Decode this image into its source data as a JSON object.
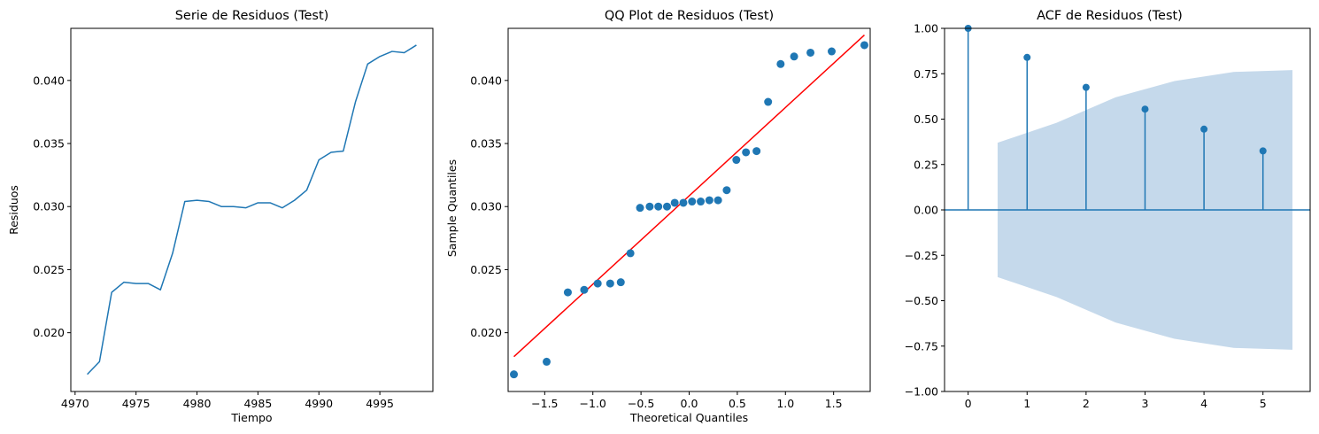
{
  "chart_data": [
    {
      "type": "line",
      "title": "Serie de Residuos (Test)",
      "xlabel": "Tiempo",
      "ylabel": "Residuos",
      "xlim": [
        4969.65,
        4999.35
      ],
      "ylim": [
        0.01534,
        0.04413
      ],
      "xticks": [
        4970,
        4975,
        4980,
        4985,
        4990,
        4995
      ],
      "xtick_labels": [
        "4970",
        "4975",
        "4980",
        "4985",
        "4990",
        "4995"
      ],
      "yticks": [
        0.02,
        0.025,
        0.03,
        0.035,
        0.04
      ],
      "ytick_labels": [
        "0.020",
        "0.025",
        "0.030",
        "0.035",
        "0.040"
      ],
      "color": "#1f77b4",
      "series": [
        {
          "x": [
            4971,
            4972,
            4973,
            4974,
            4975,
            4976,
            4977,
            4978,
            4979,
            4980,
            4981,
            4982,
            4983,
            4984,
            4985,
            4986,
            4987,
            4988,
            4989,
            4990,
            4991,
            4992,
            4993,
            4994,
            4995,
            4996,
            4997,
            4998
          ],
          "values": [
            0.0167,
            0.0177,
            0.0232,
            0.024,
            0.0239,
            0.0239,
            0.0234,
            0.0263,
            0.0304,
            0.0305,
            0.0304,
            0.03,
            0.03,
            0.0299,
            0.0303,
            0.0303,
            0.0299,
            0.0305,
            0.0313,
            0.0337,
            0.0343,
            0.0344,
            0.0383,
            0.0413,
            0.0419,
            0.0423,
            0.0422,
            0.0428
          ]
        }
      ],
      "grid": false
    },
    {
      "type": "scatter",
      "title": "QQ Plot de Residuos (Test)",
      "xlabel": "Theoretical Quantiles",
      "ylabel": "Sample Quantiles",
      "xlim": [
        -1.88,
        1.88
      ],
      "ylim": [
        0.01534,
        0.04413
      ],
      "xticks": [
        -1.5,
        -1.0,
        -0.5,
        0.0,
        0.5,
        1.0,
        1.5
      ],
      "xtick_labels": [
        "−1.5",
        "−1.0",
        "−0.5",
        "0.0",
        "0.5",
        "1.0",
        "1.5"
      ],
      "yticks": [
        0.02,
        0.025,
        0.03,
        0.035,
        0.04
      ],
      "ytick_labels": [
        "0.020",
        "0.025",
        "0.030",
        "0.035",
        "0.040"
      ],
      "point_color": "#1f77b4",
      "line_color": "#ff0000",
      "points": {
        "x": [
          -1.82,
          -1.48,
          -1.26,
          -1.09,
          -0.95,
          -0.82,
          -0.71,
          -0.61,
          -0.51,
          -0.41,
          -0.32,
          -0.23,
          -0.15,
          -0.06,
          0.03,
          0.12,
          0.21,
          0.3,
          0.39,
          0.49,
          0.59,
          0.7,
          0.82,
          0.95,
          1.09,
          1.26,
          1.48,
          1.82
        ],
        "y": [
          0.0167,
          0.0177,
          0.0232,
          0.0234,
          0.0239,
          0.0239,
          0.024,
          0.0263,
          0.0299,
          0.03,
          0.03,
          0.03,
          0.0303,
          0.0303,
          0.0304,
          0.0304,
          0.0305,
          0.0305,
          0.0313,
          0.0337,
          0.0343,
          0.0344,
          0.0383,
          0.0413,
          0.0419,
          0.0422,
          0.0423,
          0.0428
        ]
      },
      "fit_line": {
        "x": [
          -1.82,
          1.82
        ],
        "y": [
          0.0181,
          0.0436
        ]
      },
      "grid": false
    },
    {
      "type": "bar",
      "title": "ACF de Residuos (Test)",
      "xlabel": "",
      "ylabel": "",
      "xlim": [
        -0.4,
        5.8
      ],
      "ylim": [
        -1.0,
        1.0
      ],
      "xticks": [
        0,
        1,
        2,
        3,
        4,
        5
      ],
      "xtick_labels": [
        "0",
        "1",
        "2",
        "3",
        "4",
        "5"
      ],
      "yticks": [
        -1.0,
        -0.75,
        -0.5,
        -0.25,
        0.0,
        0.25,
        0.5,
        0.75,
        1.0
      ],
      "ytick_labels": [
        "−1.00",
        "−0.75",
        "−0.50",
        "−0.25",
        "0.00",
        "0.25",
        "0.50",
        "0.75",
        "1.00"
      ],
      "color": "#1f77b4",
      "band_color": "#c5d9eb",
      "lags": [
        0,
        1,
        2,
        3,
        4,
        5
      ],
      "values": [
        1.0,
        0.84,
        0.675,
        0.555,
        0.445,
        0.325
      ],
      "confidence_band": {
        "x": [
          0.5,
          1.5,
          2.5,
          3.5,
          4.5,
          5.5
        ],
        "upper": [
          0.37,
          0.48,
          0.62,
          0.71,
          0.76,
          0.77
        ],
        "lower": [
          -0.37,
          -0.48,
          -0.62,
          -0.71,
          -0.76,
          -0.77
        ]
      },
      "grid": false
    }
  ]
}
